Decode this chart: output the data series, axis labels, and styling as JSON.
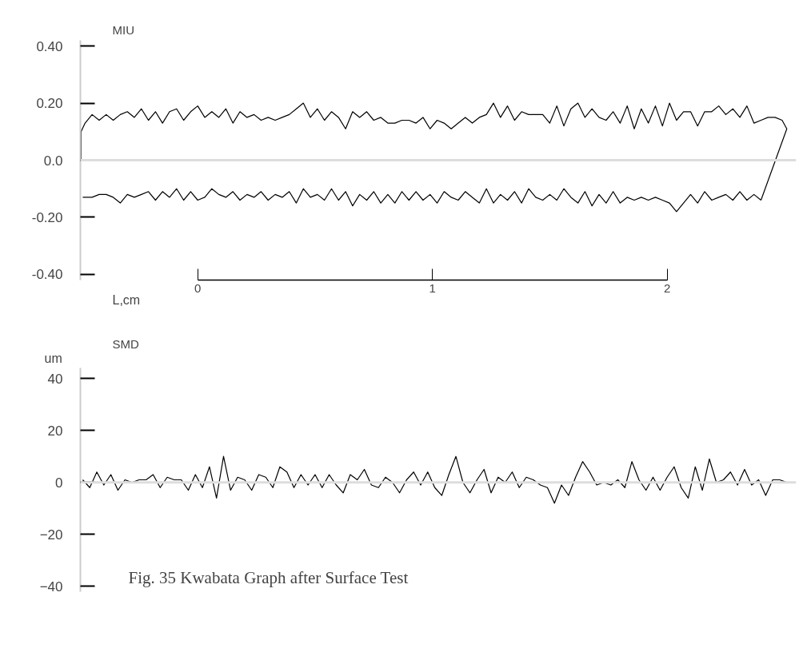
{
  "chart_data": [
    {
      "type": "line",
      "title": "MIU",
      "xlabel": "L,cm",
      "xlim": [
        -0.5,
        2.55
      ],
      "xticks": [
        0,
        1,
        2
      ],
      "ylim": [
        -0.42,
        0.42
      ],
      "yticks": [
        {
          "value": 0.4,
          "label": "0.40"
        },
        {
          "value": 0.2,
          "label": "0.20"
        },
        {
          "value": 0,
          "label": "0.0"
        },
        {
          "value": -0.2,
          "label": "-0.20"
        },
        {
          "value": -0.4,
          "label": "-0.40"
        }
      ],
      "grid": false,
      "line_style": "solid",
      "marker": "none",
      "ref_lines": [
        {
          "axis": "y",
          "value": 0,
          "color": "#dddddd"
        }
      ],
      "series": [
        {
          "color": "#000000",
          "x": [
            -0.497,
            -0.497,
            -0.48,
            -0.45,
            -0.42,
            -0.39,
            -0.36,
            -0.33,
            -0.3,
            -0.27,
            -0.24,
            -0.21,
            -0.18,
            -0.15,
            -0.12,
            -0.09,
            -0.06,
            -0.03,
            0.0,
            0.03,
            0.06,
            0.09,
            0.12,
            0.15,
            0.18,
            0.21,
            0.24,
            0.27,
            0.3,
            0.33,
            0.36,
            0.39,
            0.42,
            0.45,
            0.48,
            0.51,
            0.54,
            0.57,
            0.6,
            0.63,
            0.66,
            0.69,
            0.72,
            0.75,
            0.78,
            0.81,
            0.84,
            0.87,
            0.9,
            0.93,
            0.96,
            0.99,
            1.02,
            1.05,
            1.08,
            1.11,
            1.14,
            1.17,
            1.2,
            1.23,
            1.26,
            1.29,
            1.32,
            1.35,
            1.38,
            1.41,
            1.44,
            1.47,
            1.5,
            1.53,
            1.56,
            1.59,
            1.62,
            1.65,
            1.68,
            1.71,
            1.74,
            1.77,
            1.8,
            1.83,
            1.86,
            1.89,
            1.92,
            1.95,
            1.98,
            2.01,
            2.04,
            2.07,
            2.1,
            2.13,
            2.16,
            2.19,
            2.22,
            2.25,
            2.28,
            2.31,
            2.34,
            2.37,
            2.4,
            2.43,
            2.46,
            2.49,
            2.51,
            2.4
          ],
          "values": [
            0.0,
            0.1,
            0.13,
            0.16,
            0.14,
            0.16,
            0.14,
            0.16,
            0.17,
            0.15,
            0.18,
            0.14,
            0.17,
            0.13,
            0.17,
            0.18,
            0.14,
            0.17,
            0.19,
            0.15,
            0.17,
            0.15,
            0.18,
            0.13,
            0.17,
            0.15,
            0.16,
            0.14,
            0.15,
            0.14,
            0.15,
            0.16,
            0.18,
            0.2,
            0.15,
            0.18,
            0.14,
            0.17,
            0.15,
            0.11,
            0.17,
            0.15,
            0.17,
            0.14,
            0.15,
            0.13,
            0.13,
            0.14,
            0.14,
            0.13,
            0.15,
            0.11,
            0.14,
            0.13,
            0.11,
            0.13,
            0.15,
            0.13,
            0.15,
            0.16,
            0.2,
            0.15,
            0.19,
            0.14,
            0.17,
            0.16,
            0.16,
            0.16,
            0.13,
            0.19,
            0.12,
            0.18,
            0.2,
            0.15,
            0.18,
            0.15,
            0.14,
            0.17,
            0.13,
            0.19,
            0.11,
            0.18,
            0.13,
            0.19,
            0.12,
            0.2,
            0.14,
            0.17,
            0.17,
            0.12,
            0.17,
            0.17,
            0.19,
            0.16,
            0.18,
            0.15,
            0.19,
            0.13,
            0.14,
            0.15,
            0.15,
            0.14,
            0.11,
            -0.14
          ]
        },
        {
          "color": "#000000",
          "x": [
            2.4,
            2.37,
            2.34,
            2.31,
            2.28,
            2.25,
            2.22,
            2.19,
            2.16,
            2.13,
            2.1,
            2.07,
            2.04,
            2.01,
            1.98,
            1.95,
            1.92,
            1.89,
            1.86,
            1.83,
            1.8,
            1.77,
            1.74,
            1.71,
            1.68,
            1.65,
            1.62,
            1.59,
            1.56,
            1.53,
            1.5,
            1.47,
            1.44,
            1.41,
            1.38,
            1.35,
            1.32,
            1.29,
            1.26,
            1.23,
            1.2,
            1.17,
            1.14,
            1.11,
            1.08,
            1.05,
            1.02,
            0.99,
            0.96,
            0.93,
            0.9,
            0.87,
            0.84,
            0.81,
            0.78,
            0.75,
            0.72,
            0.69,
            0.66,
            0.63,
            0.6,
            0.57,
            0.54,
            0.51,
            0.48,
            0.45,
            0.42,
            0.39,
            0.36,
            0.33,
            0.3,
            0.27,
            0.24,
            0.21,
            0.18,
            0.15,
            0.12,
            0.09,
            0.06,
            0.03,
            0.0,
            -0.03,
            -0.06,
            -0.09,
            -0.12,
            -0.15,
            -0.18,
            -0.21,
            -0.24,
            -0.27,
            -0.3,
            -0.33,
            -0.36,
            -0.39,
            -0.42,
            -0.45,
            -0.49
          ],
          "values": [
            -0.14,
            -0.12,
            -0.14,
            -0.11,
            -0.14,
            -0.12,
            -0.13,
            -0.14,
            -0.11,
            -0.15,
            -0.12,
            -0.15,
            -0.18,
            -0.15,
            -0.14,
            -0.13,
            -0.14,
            -0.13,
            -0.14,
            -0.13,
            -0.15,
            -0.11,
            -0.15,
            -0.12,
            -0.16,
            -0.11,
            -0.15,
            -0.13,
            -0.1,
            -0.14,
            -0.12,
            -0.14,
            -0.13,
            -0.1,
            -0.15,
            -0.11,
            -0.14,
            -0.12,
            -0.15,
            -0.1,
            -0.15,
            -0.13,
            -0.11,
            -0.14,
            -0.13,
            -0.11,
            -0.15,
            -0.12,
            -0.14,
            -0.11,
            -0.14,
            -0.11,
            -0.15,
            -0.12,
            -0.15,
            -0.11,
            -0.14,
            -0.12,
            -0.16,
            -0.11,
            -0.14,
            -0.1,
            -0.14,
            -0.12,
            -0.13,
            -0.1,
            -0.15,
            -0.11,
            -0.13,
            -0.12,
            -0.14,
            -0.11,
            -0.13,
            -0.12,
            -0.14,
            -0.11,
            -0.13,
            -0.12,
            -0.1,
            -0.13,
            -0.14,
            -0.11,
            -0.14,
            -0.1,
            -0.13,
            -0.11,
            -0.14,
            -0.11,
            -0.12,
            -0.13,
            -0.12,
            -0.15,
            -0.13,
            -0.12,
            -0.12,
            -0.13,
            -0.13
          ]
        }
      ]
    },
    {
      "type": "line",
      "title": "SMD",
      "ylabel": "um",
      "xlim": [
        -0.5,
        2.55
      ],
      "ylim": [
        -42,
        44
      ],
      "yticks": [
        40,
        20,
        0,
        -20,
        -40
      ],
      "tick_labels": "y",
      "grid": false,
      "line_style": "solid",
      "marker": "none",
      "ref_lines": [
        {
          "axis": "y",
          "value": 0,
          "color": "#dddddd"
        }
      ],
      "annotations": [
        "Fig. 35 Kwabata Graph after Surface Test"
      ],
      "series": [
        {
          "color": "#000000",
          "x": [
            -0.49,
            -0.46,
            -0.43,
            -0.4,
            -0.37,
            -0.34,
            -0.31,
            -0.28,
            -0.25,
            -0.22,
            -0.19,
            -0.16,
            -0.13,
            -0.1,
            -0.07,
            -0.04,
            -0.01,
            0.02,
            0.05,
            0.08,
            0.11,
            0.14,
            0.17,
            0.2,
            0.23,
            0.26,
            0.29,
            0.32,
            0.35,
            0.38,
            0.41,
            0.44,
            0.47,
            0.5,
            0.53,
            0.56,
            0.59,
            0.62,
            0.65,
            0.68,
            0.71,
            0.74,
            0.77,
            0.8,
            0.83,
            0.86,
            0.89,
            0.92,
            0.95,
            0.98,
            1.01,
            1.04,
            1.07,
            1.1,
            1.13,
            1.16,
            1.19,
            1.22,
            1.25,
            1.28,
            1.31,
            1.34,
            1.37,
            1.4,
            1.43,
            1.46,
            1.49,
            1.52,
            1.55,
            1.58,
            1.61,
            1.64,
            1.67,
            1.7,
            1.73,
            1.76,
            1.79,
            1.82,
            1.85,
            1.88,
            1.91,
            1.94,
            1.97,
            2.0,
            2.03,
            2.06,
            2.09,
            2.12,
            2.15,
            2.18,
            2.21,
            2.24,
            2.27,
            2.3,
            2.33,
            2.36,
            2.39,
            2.42,
            2.45,
            2.48,
            2.51
          ],
          "values": [
            1,
            -2,
            4,
            -1,
            3,
            -3,
            1,
            0,
            1,
            1,
            3,
            -2,
            2,
            1,
            1,
            -3,
            3,
            -2,
            6,
            -6,
            10,
            -3,
            2,
            1,
            -3,
            3,
            2,
            -2,
            6,
            4,
            -2,
            3,
            -1,
            3,
            -2,
            3,
            -1,
            -4,
            3,
            1,
            5,
            -1,
            -2,
            2,
            0,
            -4,
            1,
            4,
            -1,
            4,
            -2,
            -5,
            3,
            10,
            0,
            -4,
            1,
            5,
            -4,
            2,
            0,
            4,
            -2,
            2,
            1,
            -1,
            -2,
            -8,
            -1,
            -5,
            2,
            8,
            4,
            -1,
            0,
            -1,
            1,
            -2,
            8,
            1,
            -3,
            2,
            -3,
            2,
            6,
            -2,
            -6,
            6,
            -3,
            9,
            0,
            1,
            4,
            -1,
            5,
            -1,
            1,
            -5,
            1,
            1,
            0
          ]
        }
      ]
    }
  ]
}
